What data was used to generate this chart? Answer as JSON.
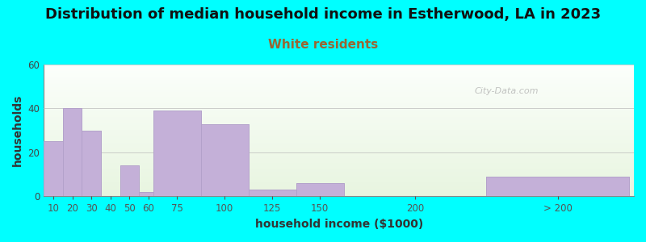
{
  "title": "Distribution of median household income in Estherwood, LA in 2023",
  "subtitle": "White residents",
  "xlabel": "household income ($1000)",
  "ylabel": "households",
  "background_outer": "#00FFFF",
  "bar_color": "#c4b0d8",
  "bar_edge_color": "#b09ec8",
  "ylim": [
    0,
    60
  ],
  "yticks": [
    0,
    20,
    40,
    60
  ],
  "values": [
    25,
    40,
    30,
    0,
    14,
    2,
    39,
    33,
    3,
    6,
    0,
    9
  ],
  "bar_lefts": [
    5,
    15,
    25,
    35,
    45,
    55,
    62.5,
    87.5,
    112.5,
    137.5,
    162.5,
    237.5
  ],
  "bar_widths": [
    10,
    10,
    10,
    10,
    10,
    7.5,
    25,
    25,
    25,
    25,
    75,
    75
  ],
  "tick_positions": [
    10,
    20,
    30,
    40,
    50,
    60,
    75,
    100,
    125,
    150,
    200,
    275
  ],
  "tick_labels": [
    "10",
    "20",
    "30",
    "40",
    "50",
    "60",
    "75",
    "100",
    "125",
    "150",
    "200",
    "> 200"
  ],
  "xlim": [
    5,
    315
  ],
  "title_fontsize": 13,
  "subtitle_fontsize": 11,
  "subtitle_color": "#996633",
  "axis_label_fontsize": 10,
  "tick_fontsize": 8.5,
  "watermark": "City-Data.com"
}
